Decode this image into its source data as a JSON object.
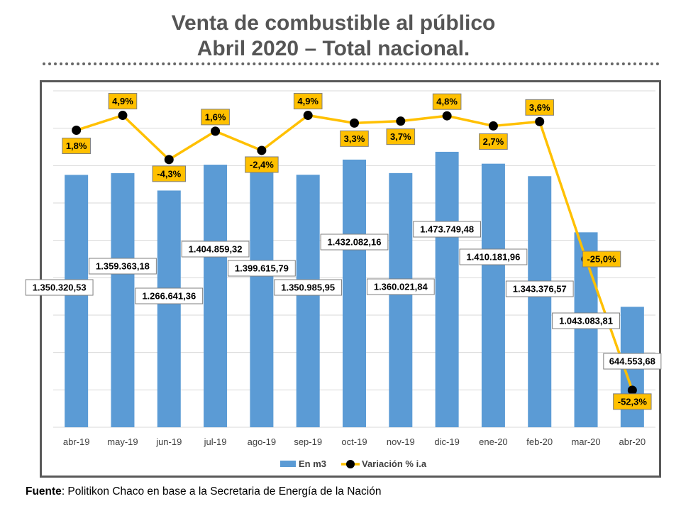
{
  "header": {
    "title_line1": "Venta de combustible al público",
    "title_line2": "Abril 2020 – Total nacional."
  },
  "source": {
    "label": "Fuente",
    "text": ": Politikon Chaco en base a la Secretaria de Energía de la Nación"
  },
  "colors": {
    "bar": "#5b9bd5",
    "line": "#ffc000",
    "marker": "#000000",
    "label_bg": "#ffc000"
  },
  "chart_data": {
    "type": "bar",
    "categories": [
      "abr-19",
      "may-19",
      "jun-19",
      "jul-19",
      "ago-19",
      "sep-19",
      "oct-19",
      "nov-19",
      "dic-19",
      "ene-20",
      "feb-20",
      "mar-20",
      "abr-20"
    ],
    "series": [
      {
        "name": "En m3",
        "type": "bar",
        "values": [
          1350320.53,
          1359363.18,
          1266641.36,
          1404859.32,
          1399615.79,
          1350985.95,
          1432082.16,
          1360021.84,
          1473749.48,
          1410181.96,
          1343376.57,
          1043083.81,
          644553.68
        ],
        "labels": [
          "1.350.320,53",
          "1.359.363,18",
          "1.266.641,36",
          "1.404.859,32",
          "1.399.615,79",
          "1.350.985,95",
          "1.432.082,16",
          "1.360.021,84",
          "1.473.749,48",
          "1.410.181,96",
          "1.343.376,57",
          "1.043.083,81",
          "644.553,68"
        ]
      },
      {
        "name": "Variación % i.a",
        "type": "line",
        "values": [
          1.8,
          4.9,
          -4.3,
          1.6,
          -2.4,
          4.9,
          3.3,
          3.7,
          4.8,
          2.7,
          3.6,
          -25.0,
          -52.3
        ],
        "labels": [
          "1,8%",
          "4,9%",
          "-4,3%",
          "1,6%",
          "-2,4%",
          "4,9%",
          "3,3%",
          "3,7%",
          "4,8%",
          "2,7%",
          "3,6%",
          "-25,0%",
          "-52,3%"
        ]
      }
    ],
    "ylim": [
      0,
      1800000
    ],
    "y2lim": [
      -60,
      10
    ],
    "grid": true,
    "legend_position": "bottom"
  }
}
